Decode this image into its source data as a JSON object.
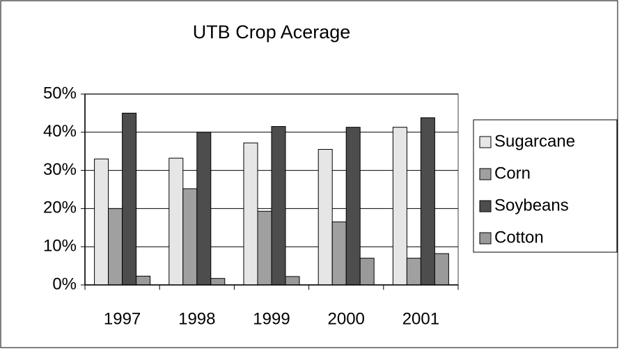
{
  "chart_data": {
    "type": "bar",
    "title": "UTB Crop Acerage",
    "categories": [
      "1997",
      "1998",
      "1999",
      "2000",
      "2001"
    ],
    "series": [
      {
        "name": "Sugarcane",
        "color": "#e6e6e6",
        "values": [
          33,
          33.2,
          37.2,
          35.5,
          41.3
        ]
      },
      {
        "name": "Corn",
        "color": "#a0a0a0",
        "values": [
          20,
          25.2,
          19.3,
          16.5,
          7
        ]
      },
      {
        "name": "Soybeans",
        "color": "#4d4d4d",
        "values": [
          45,
          40,
          41.5,
          41.3,
          43.8
        ]
      },
      {
        "name": "Cotton",
        "color": "#9a9a9a",
        "values": [
          2.3,
          1.7,
          2.2,
          7,
          8.2
        ]
      }
    ],
    "ylim": [
      0,
      50
    ],
    "yticks": [
      {
        "value": 0,
        "label": "0%"
      },
      {
        "value": 10,
        "label": "10%"
      },
      {
        "value": 20,
        "label": "20%"
      },
      {
        "value": 30,
        "label": "30%"
      },
      {
        "value": 40,
        "label": "40%"
      },
      {
        "value": 50,
        "label": "50%"
      }
    ],
    "grid": true,
    "legend": "right"
  }
}
